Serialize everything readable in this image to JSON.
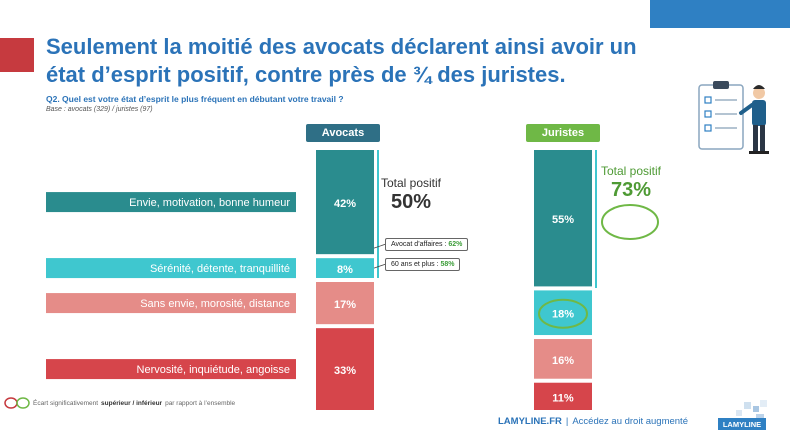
{
  "title": "Seulement la moitié des avocats déclarent ainsi avoir un état d’esprit positif, contre près de ¾ des juristes.",
  "question": "Q2. Quel est votre état d’esprit le plus fréquent en débutant votre travail ?",
  "base": "Base : avocats (329) / juristes (97)",
  "totals": {
    "label": "Total positif",
    "avocats_value": "50%",
    "juristes_value": "73%"
  },
  "notes": [
    {
      "label": "Avocat d’affaires :",
      "value": "62%"
    },
    {
      "label": "60 ans et plus :",
      "value": "58%"
    }
  ],
  "legend": {
    "prefix": "Écart significativement",
    "bold": "supérieur / inférieur",
    "suffix": "par rapport à l’ensemble"
  },
  "footer": {
    "brand": "LAMYLINE.FR",
    "separator": "|",
    "tagline": "Accédez au droit augmenté",
    "logo_text": "LAMYLINE"
  },
  "colors": {
    "positive_dark": "#2a8c8e",
    "positive_light": "#3fc7cf",
    "negative_light": "#e58c88",
    "negative_dark": "#d6454b",
    "highlight_ring": "#6fb846",
    "avocats_header": "#2f6f86",
    "juristes_header": "#6fb846"
  },
  "chart_data": {
    "type": "bar",
    "stacked": true,
    "orientation": "vertical",
    "groups": [
      "Avocats",
      "Juristes"
    ],
    "categories": [
      "Envie, motivation, bonne humeur",
      "Sérénité, détente, tranquillité",
      "Sans envie, morosité, distance",
      "Nervosité, inquiétude, angoisse"
    ],
    "series": [
      {
        "name": "Avocats",
        "values": [
          42,
          8,
          17,
          33
        ],
        "labels": [
          "42%",
          "8%",
          "17%",
          "33%"
        ]
      },
      {
        "name": "Juristes",
        "values": [
          55,
          18,
          16,
          11
        ],
        "labels": [
          "55%",
          "18%",
          "16%",
          "11%"
        ]
      }
    ],
    "highlighted": [
      {
        "series": "Juristes",
        "category": "Sérénité, détente, tranquillité"
      }
    ],
    "ylim": [
      0,
      100
    ]
  }
}
